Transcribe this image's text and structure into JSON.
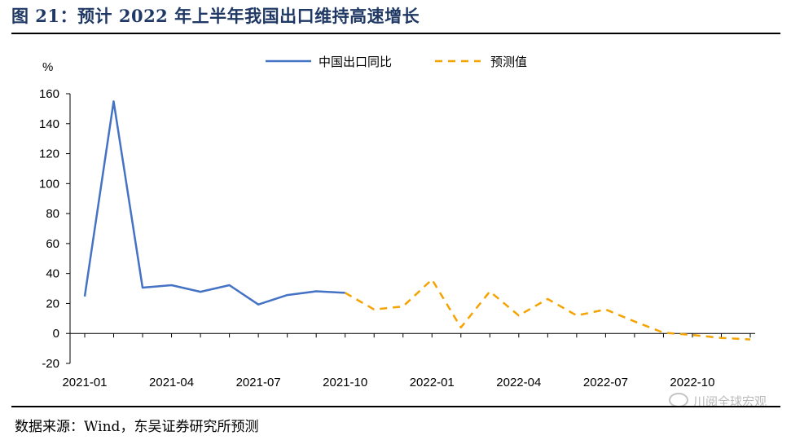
{
  "title": "图 21：预计 2022 年上半年我国出口维持高速增长",
  "source": "数据来源：Wind，东吴证券研究所预测",
  "watermark": "川阅全球宏观",
  "chart_data": {
    "type": "line",
    "ylabel": "%",
    "ylim": [
      -20,
      160
    ],
    "yticks": [
      -20,
      0,
      20,
      40,
      60,
      80,
      100,
      120,
      140,
      160
    ],
    "x": [
      "2021-01",
      "2021-02",
      "2021-03",
      "2021-04",
      "2021-05",
      "2021-06",
      "2021-07",
      "2021-08",
      "2021-09",
      "2021-10",
      "2021-11",
      "2021-12",
      "2022-01",
      "2022-02",
      "2022-03",
      "2022-04",
      "2022-05",
      "2022-06",
      "2022-07",
      "2022-08",
      "2022-09",
      "2022-10",
      "2022-11",
      "2022-12"
    ],
    "xtick_labels": [
      "2021-01",
      "2021-04",
      "2021-07",
      "2021-10",
      "2022-01",
      "2022-04",
      "2022-07",
      "2022-10"
    ],
    "legend_position": "top",
    "series": [
      {
        "name": "中国出口同比",
        "color": "#4472c4",
        "style": "solid",
        "values": [
          24.7,
          154.9,
          30.6,
          32.2,
          27.8,
          32.2,
          19.3,
          25.6,
          28.1,
          27.1,
          null,
          null,
          null,
          null,
          null,
          null,
          null,
          null,
          null,
          null,
          null,
          null,
          null,
          null
        ]
      },
      {
        "name": "预测值",
        "color": "#f4a300",
        "style": "dashed",
        "values": [
          null,
          null,
          null,
          null,
          null,
          null,
          null,
          null,
          null,
          27.1,
          16,
          18,
          36,
          4,
          28,
          12,
          23,
          12,
          16,
          8,
          0.5,
          -1,
          -3,
          -4
        ]
      }
    ]
  }
}
